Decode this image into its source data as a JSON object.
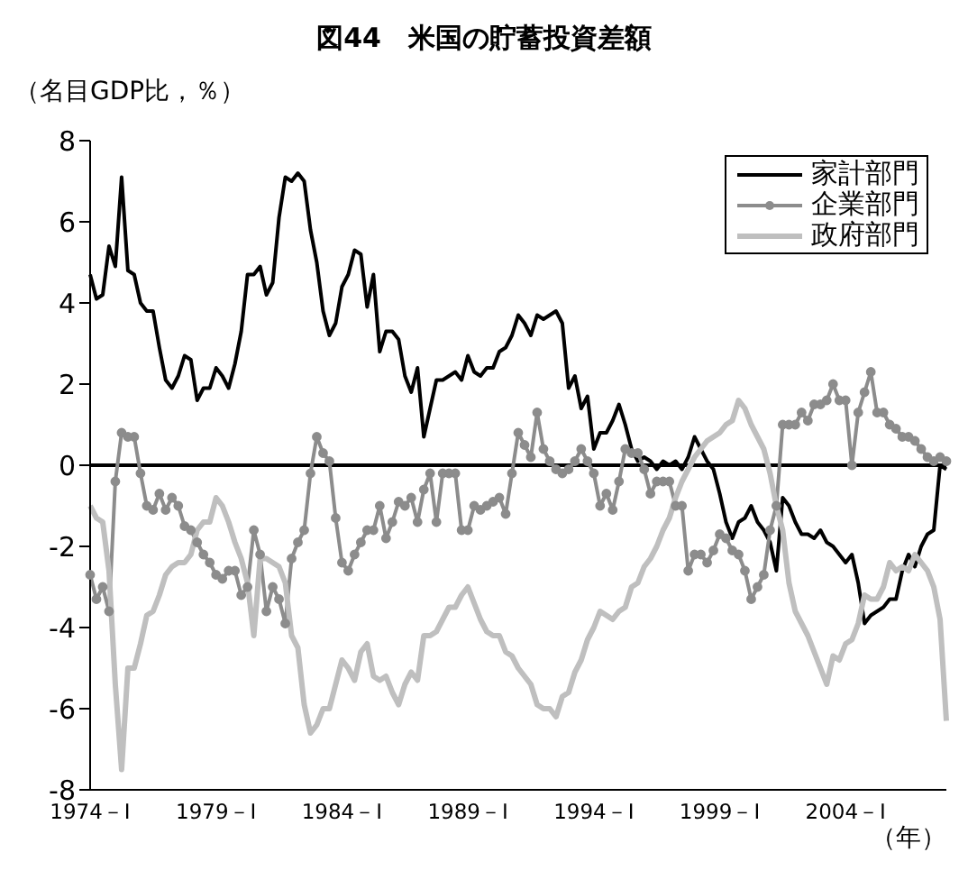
{
  "chart_data": {
    "type": "line",
    "title": "図44　米国の貯蓄投資差額",
    "ylabel": "（名目GDP比，％）",
    "xlabel": "（年）",
    "categories": [
      "1974－Ⅰ",
      null,
      null,
      null,
      null,
      null,
      null,
      null,
      null,
      null,
      null,
      null,
      null,
      null,
      null,
      null,
      null,
      null,
      null,
      null,
      "1979－Ⅰ",
      null,
      null,
      null,
      null,
      null,
      null,
      null,
      null,
      null,
      null,
      null,
      null,
      null,
      null,
      null,
      null,
      null,
      null,
      null,
      "1984－Ⅰ",
      null,
      null,
      null,
      null,
      null,
      null,
      null,
      null,
      null,
      null,
      null,
      null,
      null,
      null,
      null,
      null,
      null,
      null,
      null,
      "1989－Ⅰ",
      null,
      null,
      null,
      null,
      null,
      null,
      null,
      null,
      null,
      null,
      null,
      null,
      null,
      null,
      null,
      null,
      null,
      null,
      null,
      "1994－Ⅰ",
      null,
      null,
      null,
      null,
      null,
      null,
      null,
      null,
      null,
      null,
      null,
      null,
      null,
      null,
      null,
      null,
      null,
      null,
      null,
      "1999－Ⅰ",
      null,
      null,
      null,
      null,
      null,
      null,
      null,
      null,
      null,
      null,
      null,
      null,
      null,
      null,
      null,
      null,
      null,
      null,
      null,
      "2004－Ⅰ",
      null,
      null,
      null,
      null,
      null,
      null,
      null,
      null,
      null,
      null,
      null,
      null,
      null,
      null,
      null,
      null
    ],
    "series": [
      {
        "name": "家計部門",
        "color": "#000000",
        "marker": "none",
        "values": [
          4.7,
          4.1,
          4.2,
          5.4,
          4.9,
          7.1,
          4.8,
          4.7,
          4.0,
          3.8,
          3.8,
          2.9,
          2.1,
          1.9,
          2.2,
          2.7,
          2.6,
          1.6,
          1.9,
          1.9,
          2.4,
          2.2,
          1.9,
          2.5,
          3.3,
          4.7,
          4.7,
          4.9,
          4.2,
          4.5,
          6.1,
          7.1,
          7.0,
          7.2,
          7.0,
          5.8,
          5.0,
          3.8,
          3.2,
          3.5,
          4.4,
          4.7,
          5.3,
          5.2,
          3.9,
          4.7,
          2.8,
          3.3,
          3.3,
          3.1,
          2.2,
          1.8,
          2.4,
          0.7,
          1.4,
          2.1,
          2.1,
          2.2,
          2.3,
          2.1,
          2.7,
          2.3,
          2.2,
          2.4,
          2.4,
          2.8,
          2.9,
          3.2,
          3.7,
          3.5,
          3.2,
          3.7,
          3.6,
          3.7,
          3.8,
          3.5,
          1.9,
          2.2,
          1.4,
          1.7,
          0.4,
          0.8,
          0.8,
          1.1,
          1.5,
          1.0,
          0.4,
          0.1,
          0.2,
          0.1,
          -0.1,
          0.1,
          0.0,
          0.1,
          -0.1,
          0.2,
          0.7,
          0.4,
          0.1,
          -0.1,
          -0.7,
          -1.4,
          -1.8,
          -1.4,
          -1.3,
          -1.0,
          -1.4,
          -1.6,
          -1.9,
          -2.6,
          -0.8,
          -1.0,
          -1.4,
          -1.7,
          -1.7,
          -1.8,
          -1.6,
          -1.9,
          -2.0,
          -2.2,
          -2.4,
          -2.2,
          -2.9,
          -3.9,
          -3.7,
          -3.6,
          -3.5,
          -3.3,
          -3.3,
          -2.6,
          -2.2,
          -2.5,
          -2.0,
          -1.7,
          -1.6,
          0.0,
          -0.1
        ]
      },
      {
        "name": "企業部門",
        "color": "#8c8c8c",
        "marker": "circle",
        "values": [
          -2.7,
          -3.3,
          -3.0,
          -3.6,
          -0.4,
          0.8,
          0.7,
          0.7,
          -0.2,
          -1.0,
          -1.1,
          -0.7,
          -1.1,
          -0.8,
          -1.0,
          -1.5,
          -1.6,
          -1.9,
          -2.2,
          -2.4,
          -2.7,
          -2.8,
          -2.6,
          -2.6,
          -3.2,
          -3.0,
          -1.6,
          -2.2,
          -3.6,
          -3.0,
          -3.3,
          -3.9,
          -2.3,
          -1.9,
          -1.6,
          -0.2,
          0.7,
          0.3,
          0.1,
          -1.3,
          -2.4,
          -2.6,
          -2.2,
          -1.9,
          -1.6,
          -1.6,
          -1.0,
          -1.8,
          -1.4,
          -0.9,
          -1.0,
          -0.8,
          -1.4,
          -0.6,
          -0.2,
          -1.4,
          -0.2,
          -0.2,
          -0.2,
          -1.6,
          -1.6,
          -1.0,
          -1.1,
          -1.0,
          -0.9,
          -0.8,
          -1.2,
          -0.2,
          0.8,
          0.5,
          0.2,
          1.3,
          0.4,
          0.1,
          -0.1,
          -0.2,
          -0.1,
          0.1,
          0.4,
          0.1,
          -0.2,
          -1.0,
          -0.7,
          -1.1,
          -0.4,
          0.4,
          0.3,
          0.3,
          -0.1,
          -0.7,
          -0.4,
          -0.4,
          -0.4,
          -1.0,
          -1.0,
          -2.6,
          -2.2,
          -2.2,
          -2.4,
          -2.1,
          -1.7,
          -1.8,
          -2.1,
          -2.2,
          -2.6,
          -3.3,
          -3.0,
          -2.7,
          -1.6,
          -1.0,
          1.0,
          1.0,
          1.0,
          1.3,
          1.1,
          1.5,
          1.5,
          1.6,
          2.0,
          1.6,
          1.6,
          0.0,
          1.3,
          1.8,
          2.3,
          1.3,
          1.3,
          1.0,
          0.9,
          0.7,
          0.7,
          0.6,
          0.4,
          0.2,
          0.1,
          0.2,
          0.1
        ]
      },
      {
        "name": "政府部門",
        "color": "#bfbfbf",
        "marker": "none",
        "values": [
          -1.0,
          -1.3,
          -1.4,
          -2.6,
          -5.4,
          -7.5,
          -5.0,
          -5.0,
          -4.4,
          -3.7,
          -3.6,
          -3.2,
          -2.7,
          -2.5,
          -2.4,
          -2.4,
          -2.2,
          -1.6,
          -1.4,
          -1.4,
          -0.8,
          -1.0,
          -1.4,
          -1.9,
          -2.3,
          -2.9,
          -4.2,
          -2.3,
          -2.3,
          -2.4,
          -2.5,
          -2.9,
          -4.2,
          -4.5,
          -5.9,
          -6.6,
          -6.4,
          -6.0,
          -6.0,
          -5.4,
          -4.8,
          -5.0,
          -5.3,
          -4.6,
          -4.4,
          -5.2,
          -5.3,
          -5.2,
          -5.6,
          -5.9,
          -5.4,
          -5.1,
          -5.3,
          -4.2,
          -4.2,
          -4.1,
          -3.8,
          -3.5,
          -3.5,
          -3.2,
          -3.0,
          -3.4,
          -3.8,
          -4.1,
          -4.2,
          -4.2,
          -4.6,
          -4.7,
          -5.0,
          -5.2,
          -5.4,
          -5.9,
          -6.0,
          -6.0,
          -6.2,
          -5.7,
          -5.6,
          -5.1,
          -4.8,
          -4.3,
          -4.0,
          -3.6,
          -3.7,
          -3.8,
          -3.6,
          -3.5,
          -3.0,
          -2.9,
          -2.5,
          -2.3,
          -2.0,
          -1.6,
          -1.3,
          -0.8,
          -0.4,
          -0.1,
          0.2,
          0.4,
          0.6,
          0.7,
          0.8,
          1.0,
          1.1,
          1.6,
          1.4,
          1.0,
          0.7,
          0.4,
          -0.2,
          -1.0,
          -1.6,
          -2.9,
          -3.6,
          -3.9,
          -4.2,
          -4.6,
          -5.0,
          -5.4,
          -4.7,
          -4.8,
          -4.4,
          -4.3,
          -3.9,
          -3.2,
          -3.3,
          -3.3,
          -3.0,
          -2.4,
          -2.6,
          -2.5,
          -2.6,
          -2.2,
          -2.4,
          -2.6,
          -3.0,
          -3.8,
          -6.3
        ]
      }
    ],
    "ylim": [
      -8,
      8
    ],
    "yticks": [
      -8,
      -6,
      -4,
      -2,
      0,
      2,
      4,
      6,
      8
    ],
    "grid": false,
    "legend": "top right",
    "ref_lines": [
      {
        "axis": "y",
        "value": 0,
        "color": "#000000"
      }
    ]
  }
}
